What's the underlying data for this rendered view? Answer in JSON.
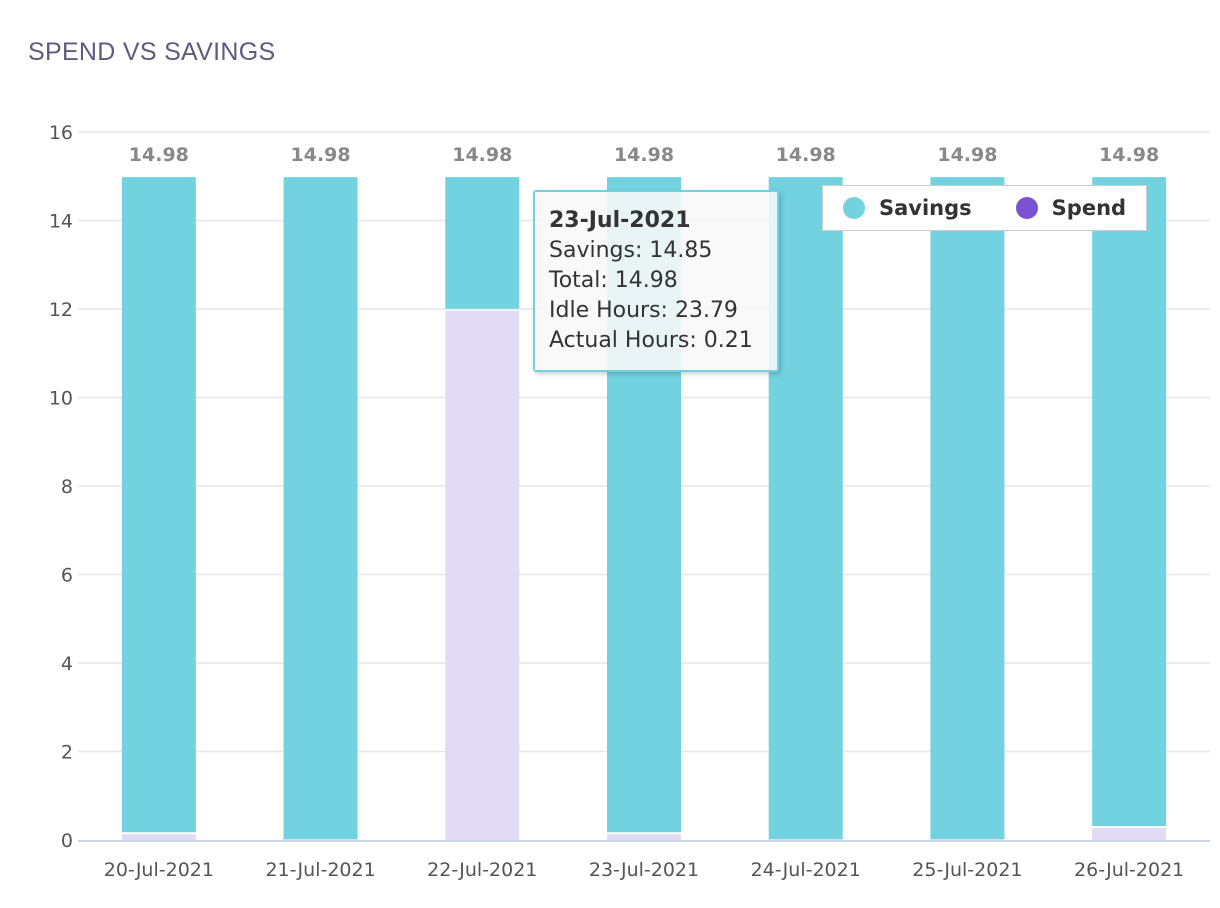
{
  "title": "SPEND VS SAVINGS",
  "colors": {
    "savings": "#72d2df",
    "spend_bar": "#e1dbf4",
    "spend_legend": "#7b52d3"
  },
  "chart_data": {
    "type": "bar",
    "stacked": true,
    "categories": [
      "20-Jul-2021",
      "21-Jul-2021",
      "22-Jul-2021",
      "23-Jul-2021",
      "24-Jul-2021",
      "25-Jul-2021",
      "26-Jul-2021"
    ],
    "series": [
      {
        "name": "Spend",
        "values": [
          0.13,
          0.02,
          11.96,
          0.13,
          0.02,
          0.02,
          0.27
        ]
      },
      {
        "name": "Savings",
        "values": [
          14.85,
          14.96,
          3.02,
          14.85,
          14.96,
          14.96,
          14.71
        ]
      }
    ],
    "totals": [
      "14.98",
      "14.98",
      "14.98",
      "14.98",
      "14.98",
      "14.98",
      "14.98"
    ],
    "ylim": [
      0,
      16
    ],
    "yticks": [
      "0",
      "2",
      "4",
      "6",
      "8",
      "10",
      "12",
      "14",
      "16"
    ],
    "grid": true,
    "legend": "top-right"
  },
  "legend": {
    "items": [
      {
        "label": "Savings"
      },
      {
        "label": "Spend"
      }
    ]
  },
  "tooltip": {
    "title": "23-Jul-2021",
    "lines": [
      "Savings: 14.85",
      "Total: 14.98",
      "Idle Hours: 23.79",
      "Actual Hours: 0.21"
    ]
  }
}
